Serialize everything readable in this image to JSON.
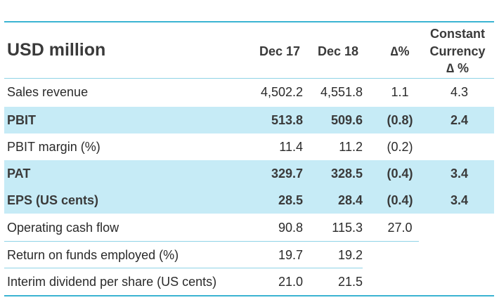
{
  "header": {
    "title": "USD million",
    "col1": "Dec 17",
    "col2": "Dec 18",
    "col3": "∆%",
    "col4_line1": "Constant",
    "col4_line2": "Currency",
    "col4_line3": "∆ %"
  },
  "rows": [
    {
      "label": "Sales revenue",
      "dec17": "4,502.2",
      "dec18": "4,551.8",
      "pct": "1.1",
      "cc": "4.3"
    },
    {
      "label": "PBIT",
      "dec17": "513.8",
      "dec18": "509.6",
      "pct": "(0.8)",
      "cc": "2.4"
    },
    {
      "label": "PBIT margin (%)",
      "dec17": "11.4",
      "dec18": "11.2",
      "pct": "(0.2)",
      "cc": ""
    },
    {
      "label": "PAT",
      "dec17": "329.7",
      "dec18": "328.5",
      "pct": "(0.4)",
      "cc": "3.4"
    },
    {
      "label": "EPS (US cents)",
      "dec17": "28.5",
      "dec18": "28.4",
      "pct": "(0.4)",
      "cc": "3.4"
    },
    {
      "label": "Operating cash flow",
      "dec17": "90.8",
      "dec18": "115.3",
      "pct": "27.0",
      "cc": ""
    },
    {
      "label": "Return on funds employed (%)",
      "dec17": "19.7",
      "dec18": "19.2",
      "pct": "",
      "cc": ""
    },
    {
      "label": "Interim dividend per share (US cents)",
      "dec17": "21.0",
      "dec18": "21.5",
      "pct": "",
      "cc": ""
    }
  ],
  "colors": {
    "accent": "#3bb4d2",
    "highlight": "#c6ebf6"
  }
}
